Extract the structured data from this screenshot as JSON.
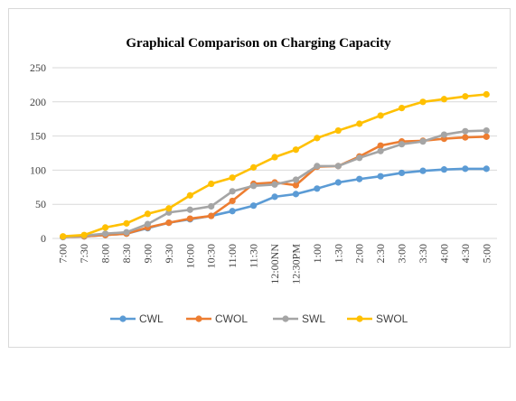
{
  "chart_data": {
    "type": "line",
    "title": "Graphical Comparison on Charging Capacity",
    "xlabel": "",
    "ylabel": "",
    "ylim": [
      0,
      250
    ],
    "yticks": [
      0,
      50,
      100,
      150,
      200,
      250
    ],
    "grid": true,
    "legend_position": "bottom",
    "categories": [
      "7:00",
      "7:30",
      "8:00",
      "8:30",
      "9:00",
      "9:30",
      "10:00",
      "10:30",
      "11:00",
      "11:30",
      "12:00NN",
      "12:30PM",
      "1:00",
      "1:30",
      "2:00",
      "2:30",
      "3:00",
      "3:30",
      "4:00",
      "4:30",
      "5:00"
    ],
    "series": [
      {
        "name": "CWL",
        "color": "#5b9bd5",
        "values": [
          2,
          3,
          5,
          7,
          15,
          23,
          28,
          33,
          40,
          48,
          61,
          65,
          73,
          82,
          87,
          91,
          96,
          99,
          101,
          102,
          102
        ]
      },
      {
        "name": "CWOL",
        "color": "#ed7d31",
        "values": [
          2,
          3,
          5,
          7,
          16,
          23,
          29,
          33,
          55,
          80,
          82,
          78,
          105,
          106,
          120,
          136,
          142,
          143,
          146,
          148,
          149
        ]
      },
      {
        "name": "SWL",
        "color": "#a5a5a5",
        "values": [
          2,
          4,
          7,
          9,
          21,
          38,
          42,
          47,
          69,
          77,
          79,
          86,
          106,
          106,
          118,
          128,
          138,
          142,
          152,
          157,
          158
        ]
      },
      {
        "name": "SWOL",
        "color": "#ffc000",
        "values": [
          3,
          5,
          16,
          22,
          36,
          44,
          63,
          80,
          89,
          104,
          119,
          130,
          147,
          158,
          168,
          180,
          191,
          200,
          204,
          208,
          211
        ]
      }
    ]
  }
}
